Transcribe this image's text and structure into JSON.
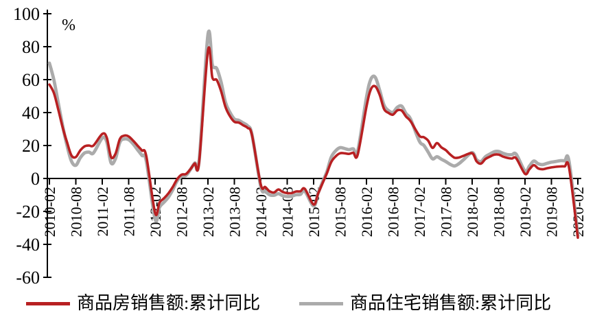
{
  "chart_data": {
    "type": "line",
    "title": "",
    "unit_label": "%",
    "grid": "off",
    "legend_position": "bottom",
    "background_color": "#ffffff",
    "axis_color": "#000000",
    "y_axis": {
      "min": -60,
      "max": 100,
      "tick_interval": 20,
      "ticks": [
        100,
        80,
        60,
        40,
        20,
        0,
        -20,
        -40,
        -60
      ]
    },
    "x_axis": {
      "tick_labels": [
        "2010-02",
        "2010-08",
        "2011-02",
        "2011-08",
        "2012-02",
        "2012-08",
        "2013-02",
        "2013-08",
        "2014-02",
        "2014-08",
        "2015-02",
        "2015-08",
        "2016-02",
        "2016-08",
        "2017-02",
        "2017-08",
        "2018-02",
        "2018-08",
        "2019-02",
        "2019-08",
        "2020-02"
      ]
    },
    "dates": [
      "2010-02",
      "2010-03",
      "2010-04",
      "2010-05",
      "2010-06",
      "2010-07",
      "2010-08",
      "2010-09",
      "2010-10",
      "2010-11",
      "2010-12",
      "2011-02",
      "2011-03",
      "2011-04",
      "2011-05",
      "2011-06",
      "2011-07",
      "2011-08",
      "2011-09",
      "2011-10",
      "2011-11",
      "2011-12",
      "2012-02",
      "2012-03",
      "2012-04",
      "2012-05",
      "2012-06",
      "2012-07",
      "2012-08",
      "2012-09",
      "2012-10",
      "2012-11",
      "2012-12",
      "2013-02",
      "2013-03",
      "2013-04",
      "2013-05",
      "2013-06",
      "2013-07",
      "2013-08",
      "2013-09",
      "2013-10",
      "2013-11",
      "2013-12",
      "2014-02",
      "2014-03",
      "2014-04",
      "2014-05",
      "2014-06",
      "2014-07",
      "2014-08",
      "2014-09",
      "2014-10",
      "2014-11",
      "2014-12",
      "2015-02",
      "2015-03",
      "2015-04",
      "2015-05",
      "2015-06",
      "2015-07",
      "2015-08",
      "2015-09",
      "2015-10",
      "2015-11",
      "2015-12",
      "2016-02",
      "2016-03",
      "2016-04",
      "2016-05",
      "2016-06",
      "2016-07",
      "2016-08",
      "2016-09",
      "2016-10",
      "2016-11",
      "2016-12",
      "2017-02",
      "2017-03",
      "2017-04",
      "2017-05",
      "2017-06",
      "2017-07",
      "2017-08",
      "2017-09",
      "2017-10",
      "2017-11",
      "2017-12",
      "2018-02",
      "2018-03",
      "2018-04",
      "2018-05",
      "2018-06",
      "2018-07",
      "2018-08",
      "2018-09",
      "2018-10",
      "2018-11",
      "2018-12",
      "2019-02",
      "2019-03",
      "2019-04",
      "2019-05",
      "2019-06",
      "2019-07",
      "2019-08",
      "2019-09",
      "2019-10",
      "2019-11",
      "2019-12",
      "2020-02"
    ],
    "series": [
      {
        "name": "商品房销售额:累计同比",
        "color": "#b82022",
        "values": [
          57.0,
          52.0,
          42.0,
          31.0,
          22.0,
          14.0,
          13.0,
          17.0,
          19.5,
          20.0,
          20.0,
          27.0,
          25.0,
          13.0,
          15.0,
          24.0,
          26.0,
          25.5,
          23.0,
          20.0,
          17.0,
          13.5,
          -20.9,
          -14.6,
          -12.1,
          -9.1,
          -5.2,
          -0.5,
          2.3,
          2.7,
          5.6,
          9.1,
          10.0,
          77.6,
          61.3,
          59.8,
          52.8,
          43.2,
          37.8,
          34.4,
          33.9,
          32.3,
          30.7,
          26.3,
          -3.7,
          -5.2,
          -7.8,
          -8.5,
          -6.7,
          -8.2,
          -8.9,
          -8.9,
          -7.9,
          -7.8,
          -6.3,
          -15.8,
          -9.3,
          -3.1,
          3.1,
          10.0,
          13.4,
          15.3,
          15.3,
          14.9,
          15.6,
          14.4,
          43.6,
          54.1,
          55.9,
          50.7,
          42.1,
          39.8,
          38.7,
          41.3,
          41.2,
          37.5,
          34.8,
          26.0,
          25.1,
          23.0,
          18.6,
          21.5,
          18.9,
          17.2,
          14.6,
          12.6,
          12.7,
          13.7,
          15.3,
          10.4,
          9.0,
          11.8,
          13.2,
          14.4,
          14.5,
          13.3,
          12.5,
          12.1,
          12.2,
          2.8,
          5.6,
          8.1,
          6.1,
          5.6,
          6.2,
          6.7,
          7.1,
          7.3,
          7.3,
          6.5,
          -35.9
        ]
      },
      {
        "name": "商品住宅销售额:累计同比",
        "color": "#ababab",
        "values": [
          70.0,
          60.0,
          46.0,
          32.0,
          20.0,
          10.5,
          8.0,
          12.5,
          15.5,
          16.0,
          15.5,
          24.5,
          22.5,
          9.5,
          12.0,
          22.0,
          24.0,
          23.5,
          21.0,
          17.5,
          14.0,
          10.5,
          -24.7,
          -17.5,
          -14.5,
          -11.4,
          -6.9,
          -1.5,
          1.3,
          1.8,
          5.3,
          9.4,
          10.9,
          87.2,
          69.0,
          66.8,
          58.3,
          46.0,
          40.1,
          36.1,
          35.3,
          33.7,
          31.9,
          26.6,
          -5.0,
          -7.7,
          -9.9,
          -10.2,
          -9.2,
          -10.5,
          -11.0,
          -10.8,
          -9.9,
          -9.7,
          -7.8,
          -16.7,
          -9.1,
          -2.3,
          4.1,
          12.9,
          16.8,
          18.7,
          18.2,
          17.5,
          18.0,
          16.6,
          49.2,
          60.3,
          61.4,
          53.4,
          44.4,
          41.2,
          40.1,
          43.2,
          43.9,
          39.3,
          36.1,
          22.7,
          20.2,
          16.1,
          11.9,
          13.2,
          11.7,
          10.3,
          8.6,
          7.6,
          9.0,
          11.3,
          15.7,
          11.4,
          10.3,
          13.2,
          14.8,
          16.2,
          16.4,
          15.3,
          14.5,
          14.4,
          14.7,
          4.5,
          7.5,
          10.6,
          8.9,
          8.4,
          9.2,
          9.9,
          10.3,
          10.8,
          10.7,
          10.3,
          -34.7
        ]
      }
    ]
  }
}
